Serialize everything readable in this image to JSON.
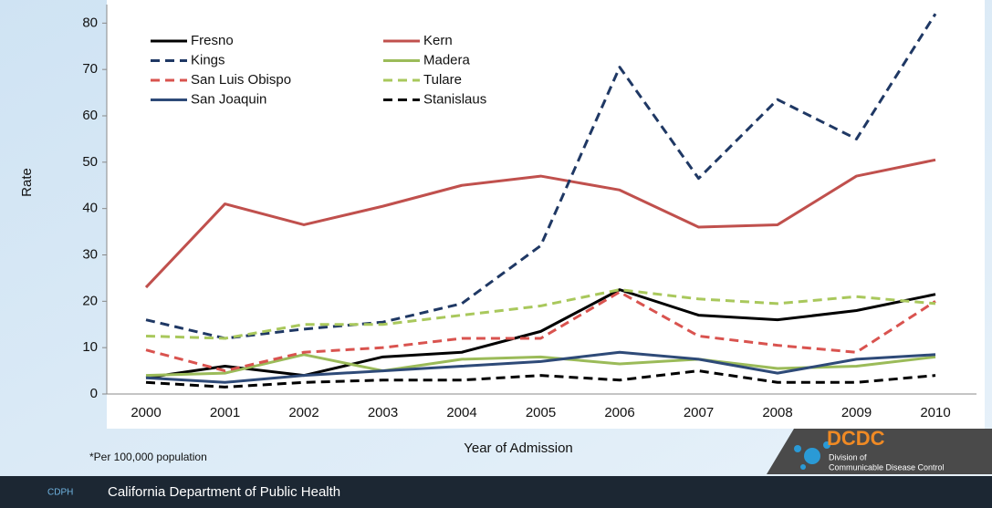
{
  "chart_data": {
    "type": "line",
    "ylabel": "Rate",
    "xlabel": "Year of Admission",
    "categories": [
      "2000",
      "2001",
      "2002",
      "2003",
      "2004",
      "2005",
      "2006",
      "2007",
      "2008",
      "2009",
      "2010"
    ],
    "ylim": [
      0,
      84
    ],
    "yticks": [
      0,
      10,
      20,
      30,
      40,
      50,
      60,
      70,
      80
    ],
    "series": [
      {
        "name": "Fresno",
        "color": "#000000",
        "dashed": false,
        "values": [
          3.5,
          6,
          4,
          8,
          9,
          13.5,
          22.5,
          17,
          16,
          18,
          21.5
        ]
      },
      {
        "name": "Kern",
        "color": "#c0504d",
        "dashed": false,
        "values": [
          23,
          41,
          36.5,
          40.5,
          45,
          47,
          44,
          36,
          36.5,
          47,
          50.5
        ]
      },
      {
        "name": "Kings",
        "color": "#1f3864",
        "dashed": true,
        "values": [
          16,
          12,
          14,
          15.5,
          19.5,
          32,
          70.5,
          46.5,
          63.5,
          55,
          82
        ]
      },
      {
        "name": "Madera",
        "color": "#9bbb59",
        "dashed": false,
        "values": [
          4,
          4.5,
          8.5,
          5,
          7.5,
          8,
          6.5,
          7.5,
          5.5,
          6,
          8
        ]
      },
      {
        "name": "San Luis Obispo",
        "color": "#d9534f",
        "dashed": true,
        "values": [
          9.5,
          5,
          9,
          10,
          12,
          12,
          22,
          12.5,
          10.5,
          9,
          20
        ]
      },
      {
        "name": "Tulare",
        "color": "#a9c85c",
        "dashed": true,
        "values": [
          12.5,
          12,
          15,
          15,
          17,
          19,
          22.5,
          20.5,
          19.5,
          21,
          19.5
        ]
      },
      {
        "name": "San Joaquin",
        "color": "#2e4a78",
        "dashed": false,
        "values": [
          3.5,
          2.5,
          4,
          5,
          6,
          7,
          9,
          7.5,
          4.5,
          7.5,
          8.5
        ]
      },
      {
        "name": "Stanislaus",
        "color": "#000000",
        "dashed": true,
        "values": [
          2.5,
          1.5,
          2.5,
          3,
          3,
          4,
          3,
          5,
          2.5,
          2.5,
          4
        ]
      }
    ]
  },
  "note": "*Per 100,000 population",
  "footer": {
    "org": "California Department of Public Health",
    "logo": "CDPH",
    "badge": "DCDC",
    "division_1": "Division of",
    "division_2": "Communicable Disease Control"
  }
}
